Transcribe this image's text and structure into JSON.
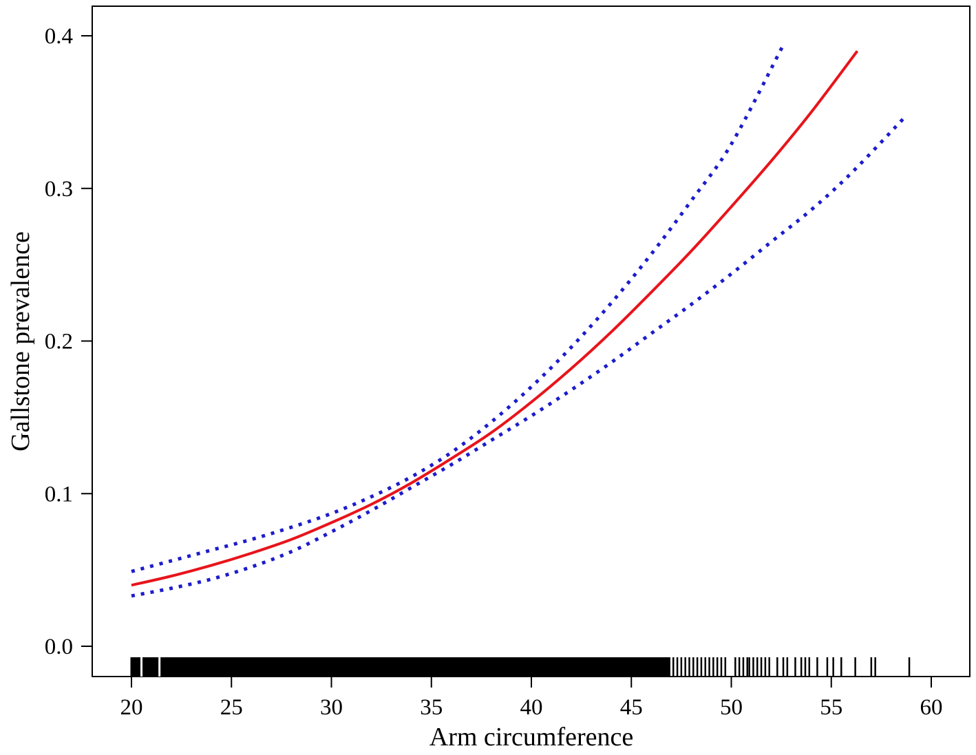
{
  "chart_data": {
    "type": "line",
    "title": "",
    "xlabel": "Arm circumference",
    "ylabel": "Gallstone prevalence",
    "xlim": [
      18,
      62.5
    ],
    "ylim": [
      -0.02,
      0.42
    ],
    "xticks": [
      20,
      25,
      30,
      35,
      40,
      45,
      50,
      55,
      60
    ],
    "xtick_labels": [
      "20",
      "25",
      "30",
      "35",
      "40",
      "45",
      "50",
      "55",
      "60"
    ],
    "yticks": [
      0.0,
      0.1,
      0.2,
      0.3,
      0.4
    ],
    "ytick_labels": [
      "0.0",
      "0.1",
      "0.2",
      "0.3",
      "0.4"
    ],
    "grid": false,
    "legend": "none",
    "series": [
      {
        "style": "solid",
        "color": "#e8141b",
        "x": [
          20,
          22,
          24,
          26,
          28,
          30,
          32,
          34,
          36,
          38,
          40,
          42,
          44,
          46,
          48,
          50,
          52,
          54,
          56.3
        ],
        "y": [
          0.04,
          0.046,
          0.053,
          0.061,
          0.07,
          0.081,
          0.093,
          0.107,
          0.123,
          0.14,
          0.16,
          0.182,
          0.206,
          0.232,
          0.259,
          0.288,
          0.318,
          0.35,
          0.39
        ]
      },
      {
        "style": "dotted",
        "color": "#1c1ccc",
        "x": [
          20,
          22,
          24,
          26,
          28,
          30,
          32,
          34,
          36,
          38,
          40,
          42,
          44,
          46,
          48,
          50,
          52.6
        ],
        "y": [
          0.049,
          0.056,
          0.063,
          0.07,
          0.078,
          0.087,
          0.098,
          0.111,
          0.127,
          0.147,
          0.17,
          0.196,
          0.225,
          0.257,
          0.292,
          0.329,
          0.394
        ]
      },
      {
        "style": "dotted",
        "color": "#1c1ccc",
        "x": [
          20,
          22,
          24,
          26,
          28,
          30,
          32,
          34,
          36,
          38,
          40,
          42,
          44,
          46,
          48,
          50,
          52,
          54,
          56,
          58.7
        ],
        "y": [
          0.033,
          0.038,
          0.044,
          0.052,
          0.062,
          0.075,
          0.089,
          0.104,
          0.119,
          0.135,
          0.151,
          0.168,
          0.186,
          0.205,
          0.224,
          0.244,
          0.265,
          0.286,
          0.31,
          0.347
        ]
      }
    ],
    "rug": {
      "color": "#000000",
      "dense_from": 20,
      "dense_to": 46.9,
      "gaps": [
        20.5,
        21.4
      ],
      "ticks": [
        47.1,
        47.3,
        47.5,
        47.7,
        47.9,
        48.1,
        48.3,
        48.5,
        48.7,
        48.9,
        49.1,
        49.3,
        49.5,
        49.7,
        50.2,
        50.4,
        50.6,
        50.8,
        50.9,
        51.1,
        51.3,
        51.5,
        51.7,
        51.9,
        52.3,
        52.6,
        52.8,
        53.2,
        53.5,
        53.7,
        53.9,
        54.3,
        54.8,
        55.1,
        55.5,
        56.2,
        57.0,
        57.2,
        58.9
      ]
    }
  }
}
